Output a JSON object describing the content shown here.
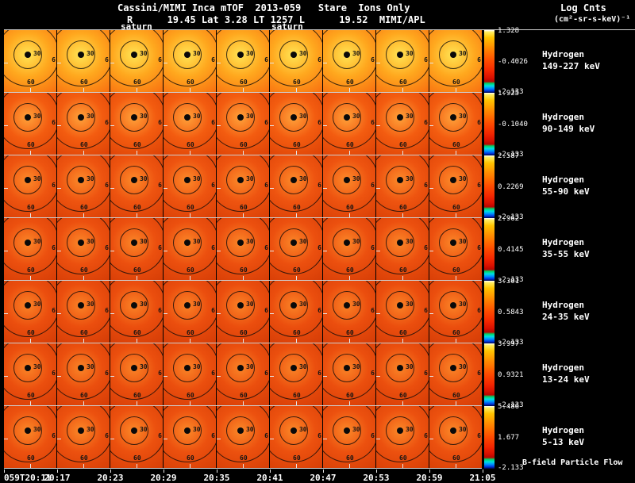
{
  "header": {
    "title": "Cassini/MIMI Inca mTOF  2013-059   Stare  Ions Only",
    "subtitle": "R      19.45 Lat 3.28 LT 1257 L      19.52  MIMI/APL",
    "legend_title": "Log Cnts",
    "legend_units": "(cm²-sr-s-keV)⁻¹",
    "saturn_labels": [
      "saturn",
      "saturn"
    ]
  },
  "panel": {
    "inner_ring_label": "30",
    "outer_ring_label": "60",
    "edge_label": "6"
  },
  "bfield_label": "B-field Particle Flow",
  "colorbar_stops": [
    "#ffffff 0%",
    "#ffee60 3%",
    "#ffc400 12%",
    "#ff8c00 28%",
    "#ff4e00 48%",
    "#f42600 65%",
    "#d91000 76%",
    "#b80500 82%",
    "#00d464 85%",
    "#00e0e0 89%",
    "#0090ff 93%",
    "#0033dd 97%",
    "#000440 100%"
  ],
  "chart_data": {
    "type": "heatmap",
    "title": "Cassini/MIMI Inca mTOF 2013-059 Stare Ions Only",
    "subtitle": "R 19.45 Lat 3.28 LT 1257 L 19.52 MIMI/APL",
    "colorbar_label": "Log Cnts (cm²-sr-s-keV)⁻¹",
    "panels_per_row": 9,
    "ring_degree_labels": [
      30,
      60
    ],
    "x_time_labels": [
      "059T20:11",
      "20:17",
      "20:23",
      "20:29",
      "20:35",
      "20:41",
      "20:47",
      "20:53",
      "20:59",
      "21:05"
    ],
    "rows": [
      {
        "species": "Hydrogen",
        "energy": "149-227 keV",
        "scale": [
          -2.133,
          1.328
        ],
        "ticks": [
          "1.328",
          "-0.4026",
          "-2.133"
        ],
        "colors": [
          "#ffe454",
          "#ffa81e",
          "#f86f10"
        ]
      },
      {
        "species": "Hydrogen",
        "energy": "90-149 keV",
        "scale": [
          -2.133,
          1.925
        ],
        "ticks": [
          "1.925",
          "-0.1040",
          "-2.133"
        ],
        "colors": [
          "#ffa23a",
          "#f35c10",
          "#dd4206"
        ]
      },
      {
        "species": "Hydrogen",
        "energy": "55-90 keV",
        "scale": [
          -2.133,
          2.587
        ],
        "ticks": [
          "2.587",
          "0.2269",
          "-2.133"
        ],
        "colors": [
          "#fc8a2a",
          "#ee5410",
          "#d93f06"
        ]
      },
      {
        "species": "Hydrogen",
        "energy": "35-55 keV",
        "scale": [
          -2.133,
          2.962
        ],
        "ticks": [
          "2.962",
          "0.4145",
          "-2.133"
        ],
        "colors": [
          "#fb8628",
          "#ec500f",
          "#d63d06"
        ]
      },
      {
        "species": "Hydrogen",
        "energy": "24-35 keV",
        "scale": [
          -2.133,
          3.301
        ],
        "ticks": [
          "3.301",
          "0.5843",
          "-2.133"
        ],
        "colors": [
          "#fa8226",
          "#eb4e0e",
          "#d43c06"
        ]
      },
      {
        "species": "Hydrogen",
        "energy": "13-24 keV",
        "scale": [
          -2.133,
          3.997
        ],
        "ticks": [
          "3.997",
          "0.9321",
          "-2.133"
        ],
        "colors": [
          "#fa8427",
          "#eb4f0e",
          "#d53c06"
        ]
      },
      {
        "species": "Hydrogen",
        "energy": "5-13 keV",
        "scale": [
          -2.133,
          5.486
        ],
        "ticks": [
          "5.486",
          "1.677",
          "-2.133"
        ],
        "colors": [
          "#fb8828",
          "#ec510f",
          "#d73e06"
        ]
      }
    ]
  }
}
